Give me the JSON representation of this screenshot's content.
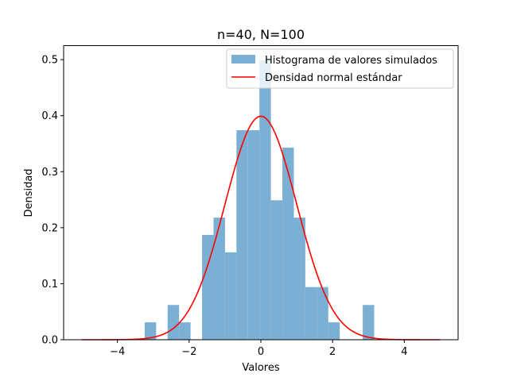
{
  "chart_data": {
    "type": "bar",
    "title": "n=40, N=100",
    "xlabel": "Valores",
    "ylabel": "Densidad",
    "xlim": [
      -5.5,
      5.5
    ],
    "ylim": [
      0,
      0.525
    ],
    "xticks": [
      -4,
      -2,
      0,
      2,
      4
    ],
    "xtick_labels": [
      "−4",
      "−2",
      "0",
      "2",
      "4"
    ],
    "yticks": [
      0.0,
      0.1,
      0.2,
      0.3,
      0.4,
      0.5
    ],
    "ytick_labels": [
      "0.0",
      "0.1",
      "0.2",
      "0.3",
      "0.4",
      "0.5"
    ],
    "grid": false,
    "legend_position": "top-right",
    "series": [
      {
        "name": "Histograma de valores simulados",
        "kind": "histogram",
        "color": "#7bafd4",
        "bin_width": 0.32,
        "bins": [
          {
            "x": -3.24,
            "value": 0.031
          },
          {
            "x": -2.6,
            "value": 0.062
          },
          {
            "x": -2.28,
            "value": 0.031
          },
          {
            "x": -1.64,
            "value": 0.187
          },
          {
            "x": -1.32,
            "value": 0.218
          },
          {
            "x": -1.0,
            "value": 0.156
          },
          {
            "x": -0.68,
            "value": 0.374
          },
          {
            "x": -0.36,
            "value": 0.374
          },
          {
            "x": -0.04,
            "value": 0.499
          },
          {
            "x": 0.28,
            "value": 0.249
          },
          {
            "x": 0.6,
            "value": 0.343
          },
          {
            "x": 0.92,
            "value": 0.218
          },
          {
            "x": 1.24,
            "value": 0.094
          },
          {
            "x": 1.56,
            "value": 0.094
          },
          {
            "x": 1.88,
            "value": 0.031
          },
          {
            "x": 2.84,
            "value": 0.062
          }
        ]
      },
      {
        "name": "Densidad normal estándar",
        "kind": "line",
        "color": "#ff0000",
        "function": "standard_normal_pdf",
        "x_range": [
          -5,
          5
        ]
      }
    ]
  }
}
